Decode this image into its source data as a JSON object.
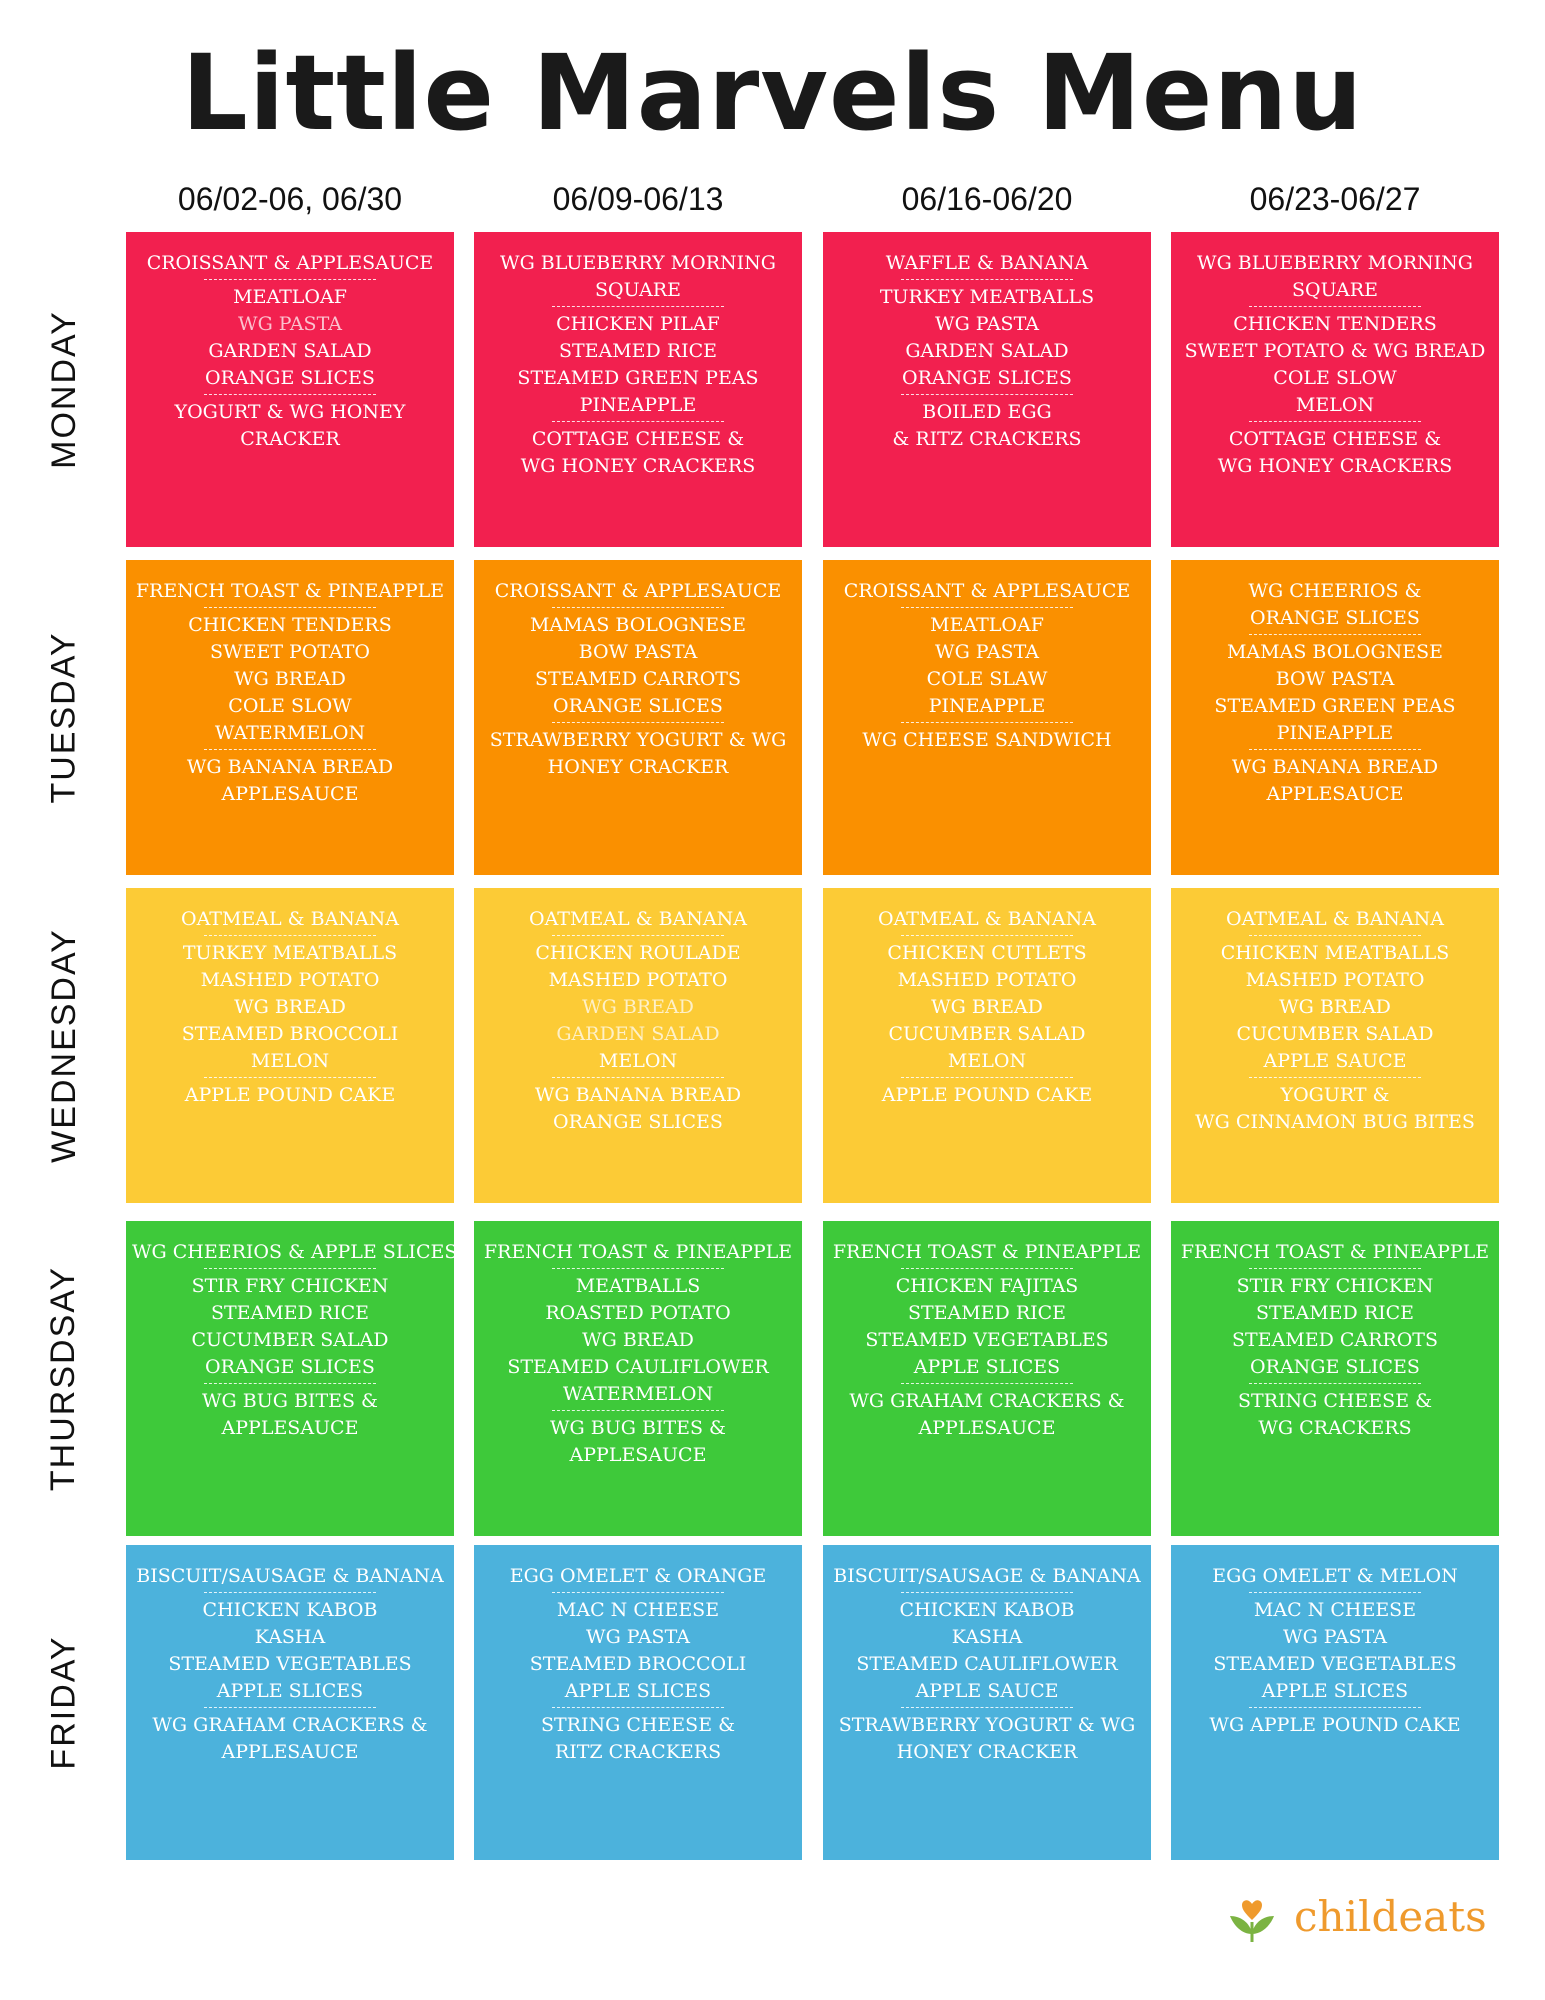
{
  "title": "Little Marvels Menu",
  "weeks": [
    "06/02-06, 06/30",
    "06/09-06/13",
    "06/16-06/20",
    "06/23-06/27"
  ],
  "days": [
    {
      "name": "MONDAY",
      "color": "#f2204f",
      "cells": [
        {
          "groups": [
            [
              "CROISSANT & APPLESAUCE"
            ],
            [
              "MEATLOAF",
              "WG PASTA",
              "GARDEN SALAD",
              "ORANGE SLICES"
            ],
            [
              "YOGURT & WG HONEY",
              "CRACKER"
            ]
          ]
        },
        {
          "groups": [
            [
              "WG BLUEBERRY MORNING",
              "SQUARE"
            ],
            [
              "CHICKEN PILAF",
              "STEAMED RICE",
              "STEAMED GREEN PEAS",
              "PINEAPPLE"
            ],
            [
              "COTTAGE CHEESE &",
              "WG HONEY CRACKERS"
            ]
          ]
        },
        {
          "groups": [
            [
              "WAFFLE & BANANA"
            ],
            [
              "TURKEY MEATBALLS",
              "WG PASTA",
              "GARDEN SALAD",
              "ORANGE SLICES"
            ],
            [
              "BOILED EGG",
              "& RITZ CRACKERS"
            ]
          ]
        },
        {
          "groups": [
            [
              "WG BLUEBERRY MORNING",
              "SQUARE"
            ],
            [
              "CHICKEN TENDERS",
              "SWEET POTATO & WG BREAD",
              "COLE SLOW",
              "MELON"
            ],
            [
              "COTTAGE CHEESE &",
              "WG HONEY CRACKERS"
            ]
          ]
        }
      ]
    },
    {
      "name": "TUESDAY",
      "color": "#fa9000",
      "cells": [
        {
          "groups": [
            [
              "FRENCH TOAST & PINEAPPLE"
            ],
            [
              "CHICKEN TENDERS",
              "SWEET POTATO",
              "WG BREAD",
              "COLE SLOW",
              "WATERMELON"
            ],
            [
              "WG BANANA BREAD",
              "APPLESAUCE"
            ]
          ]
        },
        {
          "groups": [
            [
              "CROISSANT & APPLESAUCE"
            ],
            [
              "MAMAS BOLOGNESE",
              "BOW PASTA",
              "STEAMED CARROTS",
              "ORANGE SLICES"
            ],
            [
              "STRAWBERRY YOGURT & WG",
              "HONEY CRACKER"
            ]
          ]
        },
        {
          "groups": [
            [
              "CROISSANT & APPLESAUCE"
            ],
            [
              "MEATLOAF",
              "WG PASTA",
              "COLE SLAW",
              "PINEAPPLE"
            ],
            [
              "WG  CHEESE SANDWICH"
            ]
          ]
        },
        {
          "groups": [
            [
              "WG CHEERIOS &",
              "ORANGE SLICES"
            ],
            [
              "MAMAS BOLOGNESE",
              "BOW PASTA",
              "STEAMED GREEN PEAS",
              "PINEAPPLE"
            ],
            [
              "WG BANANA BREAD",
              "APPLESAUCE"
            ]
          ]
        }
      ]
    },
    {
      "name": "WEDNESDAY",
      "color": "#fccb36",
      "cells": [
        {
          "groups": [
            [
              "OATMEAL & BANANA"
            ],
            [
              "TURKEY MEATBALLS",
              "MASHED POTATO",
              "WG BREAD",
              "STEAMED BROCCOLI",
              "MELON"
            ],
            [
              "APPLE POUND CAKE"
            ]
          ]
        },
        {
          "groups": [
            [
              "OATMEAL & BANANA"
            ],
            [
              "CHICKEN ROULADE",
              "MASHED POTATO",
              "WG BREAD",
              "GARDEN SALAD",
              "MELON"
            ],
            [
              "WG BANANA BREAD",
              "ORANGE SLICES"
            ]
          ]
        },
        {
          "groups": [
            [
              "OATMEAL & BANANA"
            ],
            [
              "CHICKEN CUTLETS",
              "MASHED POTATO",
              "WG BREAD",
              "CUCUMBER SALAD",
              "MELON"
            ],
            [
              "APPLE POUND CAKE"
            ]
          ]
        },
        {
          "groups": [
            [
              "OATMEAL & BANANA"
            ],
            [
              "CHICKEN MEATBALLS",
              "MASHED POTATO",
              "WG BREAD",
              "CUCUMBER SALAD",
              "APPLE SAUCE"
            ],
            [
              "YOGURT &",
              "WG CINNAMON BUG BITES"
            ]
          ]
        }
      ]
    },
    {
      "name": "THURSDSAY",
      "color": "#3ec93a",
      "cells": [
        {
          "groups": [
            [
              "WG CHEERIOS & APPLE SLICES"
            ],
            [
              "STIR FRY CHICKEN",
              "STEAMED RICE",
              "CUCUMBER SALAD",
              "ORANGE SLICES"
            ],
            [
              "WG BUG BITES &",
              "APPLESAUCE"
            ]
          ]
        },
        {
          "groups": [
            [
              "FRENCH TOAST & PINEAPPLE"
            ],
            [
              "MEATBALLS",
              "ROASTED  POTATO",
              "WG BREAD",
              "STEAMED CAULIFLOWER",
              "WATERMELON"
            ],
            [
              "WG BUG BITES &",
              "APPLESAUCE"
            ]
          ]
        },
        {
          "groups": [
            [
              "FRENCH TOAST & PINEAPPLE"
            ],
            [
              "CHICKEN FAJITAS",
              "STEAMED RICE",
              "STEAMED VEGETABLES",
              "APPLE SLICES"
            ],
            [
              "WG GRAHAM CRACKERS &",
              "APPLESAUCE"
            ]
          ]
        },
        {
          "groups": [
            [
              "FRENCH TOAST & PINEAPPLE"
            ],
            [
              "STIR FRY CHICKEN",
              "STEAMED RICE",
              "STEAMED CARROTS",
              "ORANGE SLICES"
            ],
            [
              "STRING CHEESE &",
              "WG CRACKERS"
            ]
          ]
        }
      ]
    },
    {
      "name": "FRIDAY",
      "color": "#4cb2dc",
      "cells": [
        {
          "groups": [
            [
              "BISCUIT/SAUSAGE & BANANA"
            ],
            [
              "CHICKEN KABOB",
              "KASHA",
              "STEAMED VEGETABLES",
              "APPLE SLICES"
            ],
            [
              "WG GRAHAM CRACKERS &",
              "APPLESAUCE"
            ]
          ]
        },
        {
          "groups": [
            [
              "EGG OMELET & ORANGE"
            ],
            [
              "MAC N CHEESE",
              "WG PASTA",
              "STEAMED BROCCOLI",
              "APPLE SLICES"
            ],
            [
              "STRING CHEESE &",
              "RITZ CRACKERS"
            ]
          ]
        },
        {
          "groups": [
            [
              "BISCUIT/SAUSAGE & BANANA"
            ],
            [
              "CHICKEN KABOB",
              "KASHA",
              "STEAMED CAULIFLOWER",
              "APPLE SAUCE"
            ],
            [
              "STRAWBERRY YOGURT & WG",
              "HONEY CRACKER"
            ]
          ]
        },
        {
          "groups": [
            [
              "EGG OMELET & MELON"
            ],
            [
              "MAC N CHEESE",
              "WG PASTA",
              "STEAMED VEGETABLES",
              "APPLE SLICES"
            ],
            [
              "WG APPLE POUND CAKE"
            ]
          ]
        }
      ]
    }
  ],
  "logo": {
    "text": "childeats",
    "icon": "sprout-heart-icon",
    "color": "#ef9a2d",
    "leaf_color": "#7bb342"
  }
}
